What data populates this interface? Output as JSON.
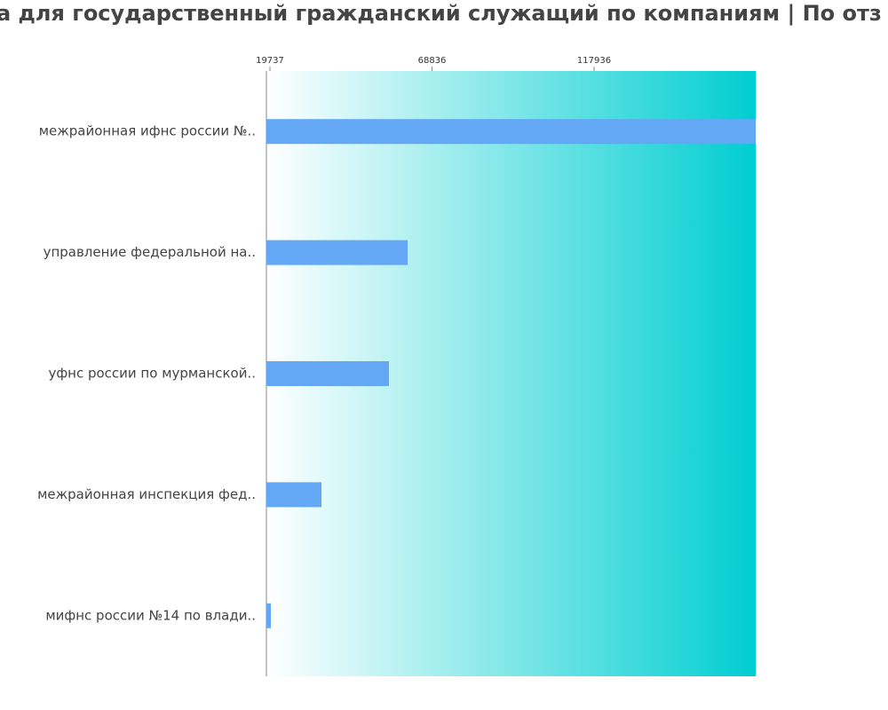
{
  "chart_data": {
    "type": "bar",
    "orientation": "horizontal",
    "title": "а для государственный гражданский служащий по компаниям  | По отз",
    "categories": [
      "межрайонная ифнс россии №..",
      "управление федеральной на..",
      "уфнс россии по мурманской..",
      "межрайонная инспекция фед..",
      "мифнс россии №14 по влади.."
    ],
    "values": [
      166897,
      61437,
      55787,
      35340,
      20006
    ],
    "color": "#64a8f5",
    "xlim": [
      18661,
      166897
    ],
    "xticks": [
      19737,
      68836,
      117936
    ]
  }
}
